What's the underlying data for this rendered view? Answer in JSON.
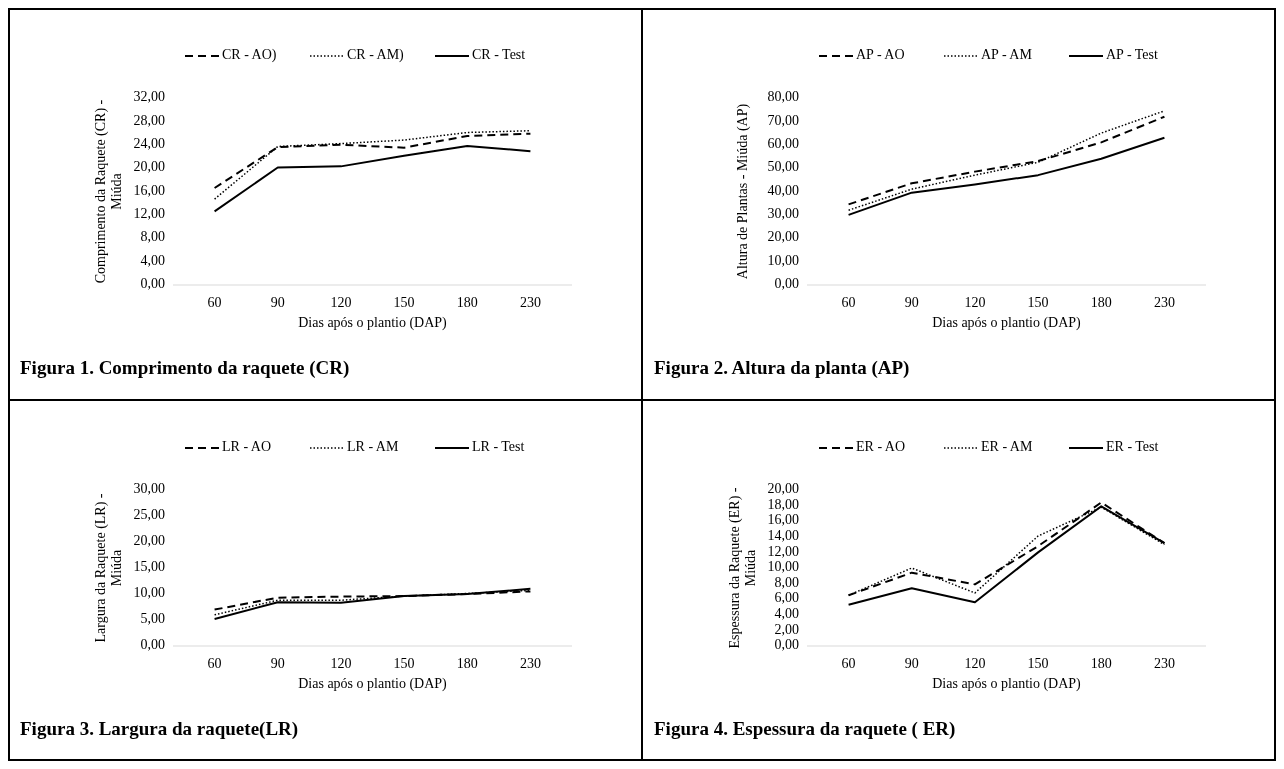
{
  "chart_data": [
    {
      "type": "line",
      "title": "Figura 1. Comprimento da raquete (CR)",
      "xlabel": "Dias após o plantio (DAP)",
      "ylabel": "Comprimento da Raquete (CR) - Miúda",
      "categories": [
        "60",
        "90",
        "120",
        "150",
        "180",
        "230"
      ],
      "ylim": [
        0,
        32
      ],
      "yticks": [
        {
          "value": 0,
          "label": "0,00"
        },
        {
          "value": 4,
          "label": "4,00"
        },
        {
          "value": 8,
          "label": "8,00"
        },
        {
          "value": 12,
          "label": "12,00"
        },
        {
          "value": 16,
          "label": "16,00"
        },
        {
          "value": 20,
          "label": "20,00"
        },
        {
          "value": 24,
          "label": "24,00"
        },
        {
          "value": 28,
          "label": "28,00"
        },
        {
          "value": 32,
          "label": "32,00"
        }
      ],
      "legend": "top",
      "series": [
        {
          "name": "CR - AO)",
          "color": "#000000",
          "line_style": "dashed",
          "values": [
            16.6,
            23.6,
            24.0,
            23.5,
            25.5,
            25.9
          ]
        },
        {
          "name": "CR - AM)",
          "color": "#000000",
          "line_style": "dotted",
          "values": [
            14.7,
            23.7,
            24.2,
            24.8,
            26.1,
            26.4
          ]
        },
        {
          "name": "CR - Test",
          "color": "#000000",
          "line_style": "solid",
          "values": [
            12.6,
            20.1,
            20.3,
            22.1,
            23.8,
            22.9
          ]
        }
      ]
    },
    {
      "type": "line",
      "title": "Figura 2. Altura da planta (AP)",
      "xlabel": "Dias após o plantio (DAP)",
      "ylabel": "Altura de Plantas - Miúda (AP)",
      "categories": [
        "60",
        "90",
        "120",
        "150",
        "180",
        "230"
      ],
      "ylim": [
        0,
        80
      ],
      "yticks": [
        {
          "value": 0,
          "label": "0,00"
        },
        {
          "value": 10,
          "label": "10,00"
        },
        {
          "value": 20,
          "label": "20,00"
        },
        {
          "value": 30,
          "label": "30,00"
        },
        {
          "value": 40,
          "label": "40,00"
        },
        {
          "value": 50,
          "label": "50,00"
        },
        {
          "value": 60,
          "label": "60,00"
        },
        {
          "value": 70,
          "label": "70,00"
        },
        {
          "value": 80,
          "label": "80,00"
        }
      ],
      "legend": "top",
      "series": [
        {
          "name": "AP - AO",
          "color": "#000000",
          "line_style": "dashed",
          "values": [
            34.5,
            43.5,
            48.5,
            53,
            61,
            72
          ]
        },
        {
          "name": "AP - AM",
          "color": "#000000",
          "line_style": "dotted",
          "values": [
            32,
            41,
            47,
            52.5,
            65,
            74.5
          ]
        },
        {
          "name": "AP - Test",
          "color": "#000000",
          "line_style": "solid",
          "values": [
            30,
            39.5,
            43,
            47,
            54,
            63
          ]
        }
      ]
    },
    {
      "type": "line",
      "title": "Figura 3. Largura da raquete(LR)",
      "xlabel": "Dias após o plantio (DAP)",
      "ylabel": "Largura da Raquete (LR) - Miúda",
      "categories": [
        "60",
        "90",
        "120",
        "150",
        "180",
        "230"
      ],
      "ylim": [
        0,
        30
      ],
      "yticks": [
        {
          "value": 0,
          "label": "0,00"
        },
        {
          "value": 5,
          "label": "5,00"
        },
        {
          "value": 10,
          "label": "10,00"
        },
        {
          "value": 15,
          "label": "15,00"
        },
        {
          "value": 20,
          "label": "20,00"
        },
        {
          "value": 25,
          "label": "25,00"
        },
        {
          "value": 30,
          "label": "30,00"
        }
      ],
      "legend": "top",
      "series": [
        {
          "name": "LR - AO",
          "color": "#000000",
          "line_style": "dashed",
          "values": [
            7.0,
            9.3,
            9.5,
            9.6,
            10.0,
            10.5
          ]
        },
        {
          "name": "LR - AM",
          "color": "#000000",
          "line_style": "dotted",
          "values": [
            6.0,
            8.8,
            8.8,
            9.6,
            10.1,
            10.7
          ]
        },
        {
          "name": "LR - Test",
          "color": "#000000",
          "line_style": "solid",
          "values": [
            5.2,
            8.4,
            8.3,
            9.6,
            10.0,
            11.0
          ]
        }
      ]
    },
    {
      "type": "line",
      "title": "Figura 4. Espessura da raquete ( ER)",
      "xlabel": "Dias após o plantio (DAP)",
      "ylabel": "Espessura da Raquete (ER) - Miúda",
      "categories": [
        "60",
        "90",
        "120",
        "150",
        "180",
        "230"
      ],
      "ylim": [
        0,
        20
      ],
      "yticks": [
        {
          "value": 0,
          "label": "0,00"
        },
        {
          "value": 2,
          "label": "2,00"
        },
        {
          "value": 4,
          "label": "4,00"
        },
        {
          "value": 6,
          "label": "6,00"
        },
        {
          "value": 8,
          "label": "8,00"
        },
        {
          "value": 10,
          "label": "10,00"
        },
        {
          "value": 12,
          "label": "12,00"
        },
        {
          "value": 14,
          "label": "14,00"
        },
        {
          "value": 16,
          "label": "16,00"
        },
        {
          "value": 18,
          "label": "18,00"
        },
        {
          "value": 20,
          "label": "20,00"
        }
      ],
      "legend": "top",
      "series": [
        {
          "name": "ER - AO",
          "color": "#000000",
          "line_style": "dashed",
          "values": [
            6.5,
            9.4,
            7.9,
            12.8,
            18.4,
            13.2
          ]
        },
        {
          "name": "ER - AM",
          "color": "#000000",
          "line_style": "dotted",
          "values": [
            6.5,
            10.0,
            6.8,
            14.1,
            17.8,
            13.0
          ]
        },
        {
          "name": "ER - Test",
          "color": "#000000",
          "line_style": "solid",
          "values": [
            5.3,
            7.4,
            5.6,
            12.0,
            17.9,
            13.2
          ]
        }
      ]
    }
  ]
}
